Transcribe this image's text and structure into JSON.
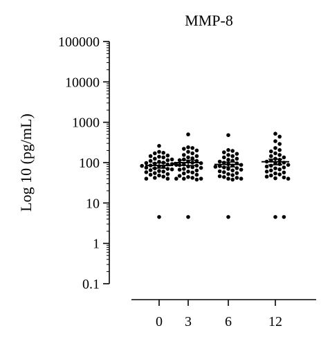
{
  "chart_data": {
    "type": "scatter",
    "title": "MMP-8",
    "ylabel": "Log 10 (pg/mL)",
    "xlabel": "",
    "y_scale": "log",
    "ylim": [
      0.1,
      100000
    ],
    "y_ticks": [
      {
        "value": 0.1,
        "label": "0.1"
      },
      {
        "value": 1,
        "label": "1"
      },
      {
        "value": 10,
        "label": "10"
      },
      {
        "value": 100,
        "label": "100"
      },
      {
        "value": 1000,
        "label": "1000"
      },
      {
        "value": 10000,
        "label": "10000"
      },
      {
        "value": 100000,
        "label": "100000"
      }
    ],
    "categories": [
      "0",
      "3",
      "6",
      "12"
    ],
    "grid": false,
    "series": [
      {
        "category": "0",
        "mean": 85,
        "sem_low": 73,
        "sem_high": 98,
        "values": [
          260,
          185,
          175,
          170,
          150,
          145,
          140,
          135,
          125,
          120,
          115,
          110,
          105,
          100,
          98,
          95,
          92,
          90,
          88,
          85,
          83,
          80,
          78,
          75,
          72,
          70,
          68,
          65,
          62,
          60,
          58,
          55,
          52,
          50,
          48,
          45,
          42,
          40,
          40,
          40,
          4.5
        ]
      },
      {
        "category": "3",
        "mean": 100,
        "sem_low": 85,
        "sem_high": 115,
        "values": [
          500,
          240,
          230,
          220,
          200,
          185,
          170,
          155,
          145,
          135,
          128,
          120,
          115,
          110,
          105,
          100,
          97,
          94,
          90,
          87,
          84,
          80,
          77,
          74,
          70,
          67,
          64,
          60,
          57,
          54,
          50,
          47,
          44,
          42,
          40,
          40,
          38,
          4.5
        ]
      },
      {
        "category": "6",
        "mean": 90,
        "sem_low": 78,
        "sem_high": 103,
        "values": [
          480,
          205,
          195,
          180,
          165,
          155,
          145,
          135,
          125,
          118,
          112,
          106,
          100,
          96,
          92,
          88,
          85,
          82,
          79,
          76,
          73,
          70,
          67,
          64,
          61,
          58,
          55,
          52,
          49,
          46,
          44,
          42,
          40,
          40,
          38,
          4.5
        ]
      },
      {
        "category": "12",
        "mean": 105,
        "sem_low": 88,
        "sem_high": 122,
        "values": [
          520,
          440,
          340,
          290,
          230,
          205,
          190,
          170,
          155,
          145,
          135,
          125,
          118,
          112,
          106,
          100,
          96,
          92,
          88,
          84,
          80,
          76,
          72,
          68,
          64,
          60,
          57,
          54,
          51,
          48,
          45,
          43,
          41,
          40,
          4.5,
          4.5
        ]
      }
    ]
  }
}
